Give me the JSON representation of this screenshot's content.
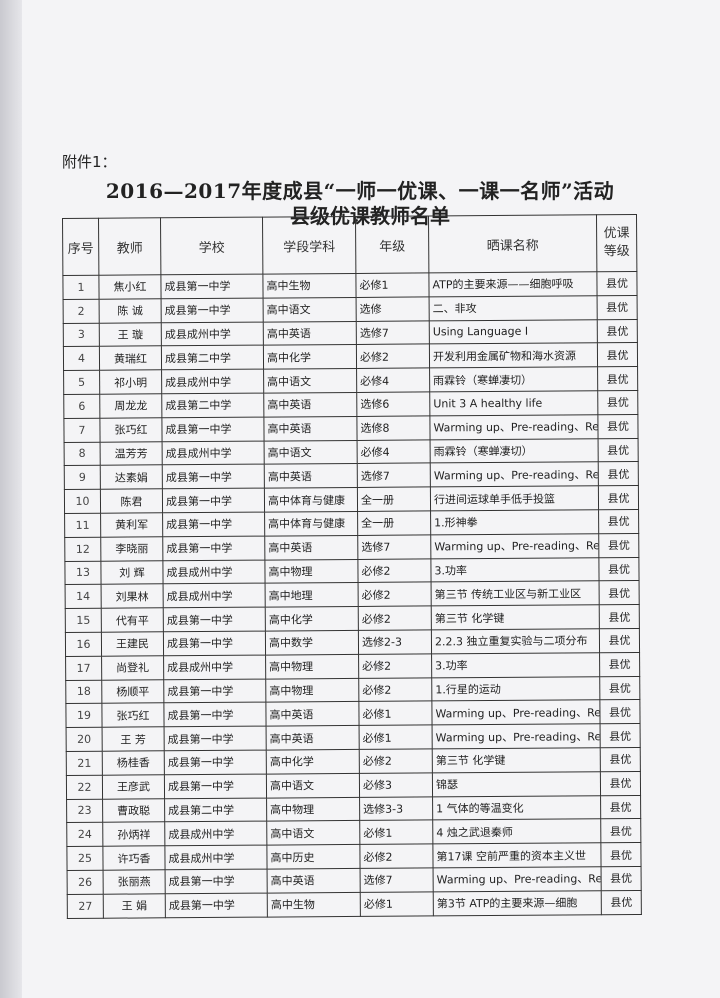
{
  "annex": "附件1：",
  "title_line1": "2016—2017年度成县“一师一优课、一课一名师”活动",
  "title_line2": "县级优课教师名单",
  "columns": [
    "序号",
    "教师",
    "学校",
    "学段学科",
    "年级",
    "晒课名称",
    "优课等级"
  ],
  "rows": [
    [
      "1",
      "焦小红",
      "成县第一中学",
      "高中生物",
      "必修1",
      "ATP的主要来源——细胞呼吸",
      "县优"
    ],
    [
      "2",
      "陈 诚",
      "成县第一中学",
      "高中语文",
      "选修",
      "二、非攻",
      "县优"
    ],
    [
      "3",
      "王 璇",
      "成县成州中学",
      "高中英语",
      "选修7",
      "Using Language I",
      "县优"
    ],
    [
      "4",
      "黄瑞红",
      "成县第二中学",
      "高中化学",
      "必修2",
      "开发利用金属矿物和海水资源",
      "县优"
    ],
    [
      "5",
      "祁小明",
      "成县成州中学",
      "高中语文",
      "必修4",
      "雨霖铃（寒蝉凄切）",
      "县优"
    ],
    [
      "6",
      "周龙龙",
      "成县第二中学",
      "高中英语",
      "选修6",
      "Unit 3   A healthy life",
      "县优"
    ],
    [
      "7",
      "张巧红",
      "成县第一中学",
      "高中英语",
      "选修8",
      "Warming up、Pre-reading、Re",
      "县优"
    ],
    [
      "8",
      "温芳芳",
      "成县成州中学",
      "高中语文",
      "必修4",
      "雨霖铃（寒蝉凄切）",
      "县优"
    ],
    [
      "9",
      "达素娟",
      "成县第一中学",
      "高中英语",
      "选修7",
      "Warming up、Pre-reading、Re",
      "县优"
    ],
    [
      "10",
      "陈君",
      "成县第一中学",
      "高中体育与健康",
      "全一册",
      "行进间运球单手低手投篮",
      "县优"
    ],
    [
      "11",
      "黄利军",
      "成县第一中学",
      "高中体育与健康",
      "全一册",
      "1.形神拳",
      "县优"
    ],
    [
      "12",
      "李晓丽",
      "成县第一中学",
      "高中英语",
      "选修7",
      "Warming up、Pre-reading、Re",
      "县优"
    ],
    [
      "13",
      "刘 辉",
      "成县成州中学",
      "高中物理",
      "必修2",
      "3.功率",
      "县优"
    ],
    [
      "14",
      "刘果林",
      "成县成州中学",
      "高中地理",
      "必修2",
      "第三节   传统工业区与新工业区",
      "县优"
    ],
    [
      "15",
      "代有平",
      "成县第一中学",
      "高中化学",
      "必修2",
      "第三节   化学键",
      "县优"
    ],
    [
      "16",
      "王建民",
      "成县第一中学",
      "高中数学",
      "选修2-3",
      "2.2.3 独立重复实验与二项分布",
      "县优"
    ],
    [
      "17",
      "尚登礼",
      "成县成州中学",
      "高中物理",
      "必修2",
      "3.功率",
      "县优"
    ],
    [
      "18",
      "杨顺平",
      "成县第一中学",
      "高中物理",
      "必修2",
      "1.行星的运动",
      "县优"
    ],
    [
      "19",
      "张巧红",
      "成县第一中学",
      "高中英语",
      "必修1",
      "Warming up、Pre-reading、Re",
      "县优"
    ],
    [
      "20",
      "王 芳",
      "成县第一中学",
      "高中英语",
      "必修1",
      "Warming up、Pre-reading、Re",
      "县优"
    ],
    [
      "21",
      "杨桂香",
      "成县第一中学",
      "高中化学",
      "必修2",
      "第三节   化学键",
      "县优"
    ],
    [
      "22",
      "王彦武",
      "成县第一中学",
      "高中语文",
      "必修3",
      "锦瑟",
      "县优"
    ],
    [
      "23",
      "曹政聪",
      "成县第二中学",
      "高中物理",
      "选修3-3",
      "1   气体的等温变化",
      "县优"
    ],
    [
      "24",
      "孙炳祥",
      "成县成州中学",
      "高中语文",
      "必修1",
      "4   烛之武退秦师",
      "县优"
    ],
    [
      "25",
      "许巧香",
      "成县成州中学",
      "高中历史",
      "必修2",
      "第17课   空前严重的资本主义世",
      "县优"
    ],
    [
      "26",
      "张丽燕",
      "成县第一中学",
      "高中英语",
      "选修7",
      "Warming up、Pre-reading、Re",
      "县优"
    ],
    [
      "27",
      "王 娟",
      "成县第一中学",
      "高中生物",
      "必修1",
      "第3节   ATP的主要来源—细胞",
      "县优"
    ]
  ]
}
